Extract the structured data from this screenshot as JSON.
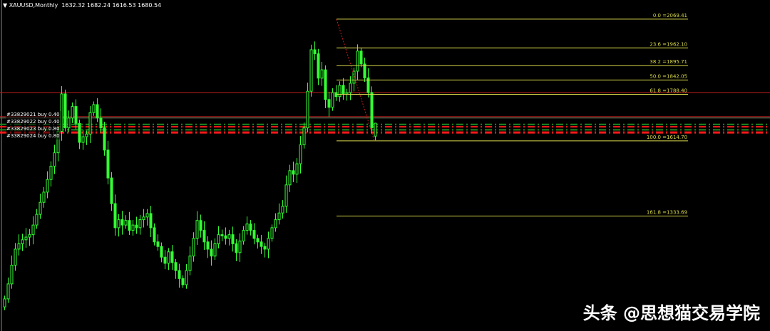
{
  "header": {
    "symbol_label": "XAUUSD,Monthly",
    "ohlc": "1632.32 1682.24 1616.53 1680.54"
  },
  "orders": [
    "#33829021 buy 0.40",
    "#33829022 buy 0.40",
    "#33829023 buy 0.80",
    "#33829024 buy 0.80"
  ],
  "watermark": "头条 @思想猫交易学院",
  "colors": {
    "background": "#000000",
    "candle": "#33ff33",
    "fib": "#d8d84a",
    "hline": "#c81e1e",
    "order_green": "#1f8a1f",
    "order_red": "#ff1a1a"
  },
  "chart_data": {
    "type": "candlestick",
    "symbol": "XAUUSD",
    "timeframe": "Monthly",
    "ylim": [
      904,
      2141
    ],
    "last_bar": {
      "open": 1632.32,
      "high": 1682.24,
      "low": 1616.53,
      "close": 1680.54
    },
    "closes": [
      1024,
      1080,
      1150,
      1210,
      1230,
      1245,
      1255,
      1264,
      1300,
      1340,
      1385,
      1423,
      1470,
      1520,
      1570,
      1650,
      1790,
      1663,
      1700,
      1743,
      1680,
      1609,
      1630,
      1640,
      1720,
      1750,
      1700,
      1663,
      1580,
      1476,
      1380,
      1290,
      1320,
      1300,
      1317,
      1280,
      1300,
      1290,
      1320,
      1330,
      1343,
      1290,
      1237,
      1220,
      1180,
      1157,
      1200,
      1160,
      1130,
      1100,
      1077,
      1130,
      1184,
      1250,
      1317,
      1280,
      1237,
      1210,
      1184,
      1230,
      1264,
      1260,
      1250,
      1264,
      1230,
      1197,
      1240,
      1280,
      1304,
      1280,
      1250,
      1237,
      1220,
      1210,
      1250,
      1290,
      1320,
      1345,
      1370,
      1450,
      1503,
      1490,
      1529,
      1600,
      1663,
      1800,
      1955,
      1940,
      1849,
      1880,
      1769,
      1740,
      1795,
      1780,
      1822,
      1790,
      1795,
      1830,
      1875,
      1950,
      1902,
      1850,
      1795,
      1663,
      1680.54
    ],
    "fibonacci": [
      {
        "level": "0.0",
        "price": 2069.41,
        "label": "0.0  =2069.41"
      },
      {
        "level": "23.6",
        "price": 1962.1,
        "label": "23.6  =1962.10"
      },
      {
        "level": "38.2",
        "price": 1895.71,
        "label": "38.2  =1895.71"
      },
      {
        "level": "50.0",
        "price": 1842.05,
        "label": "50.0  =1842.05"
      },
      {
        "level": "61.8",
        "price": 1788.4,
        "label": "61.8  =1788.40"
      },
      {
        "level": "100.0",
        "price": 1614.7,
        "label": "100.0  =1614.70"
      },
      {
        "level": "161.8",
        "price": 1333.69,
        "label": "161.8  =1333.69"
      }
    ],
    "horizontal_lines": [
      1795,
      1705
    ],
    "order_lines": [
      1676,
      1667,
      1656,
      1646
    ],
    "trendline": {
      "from": 2069.41,
      "to": 1614.7
    }
  }
}
